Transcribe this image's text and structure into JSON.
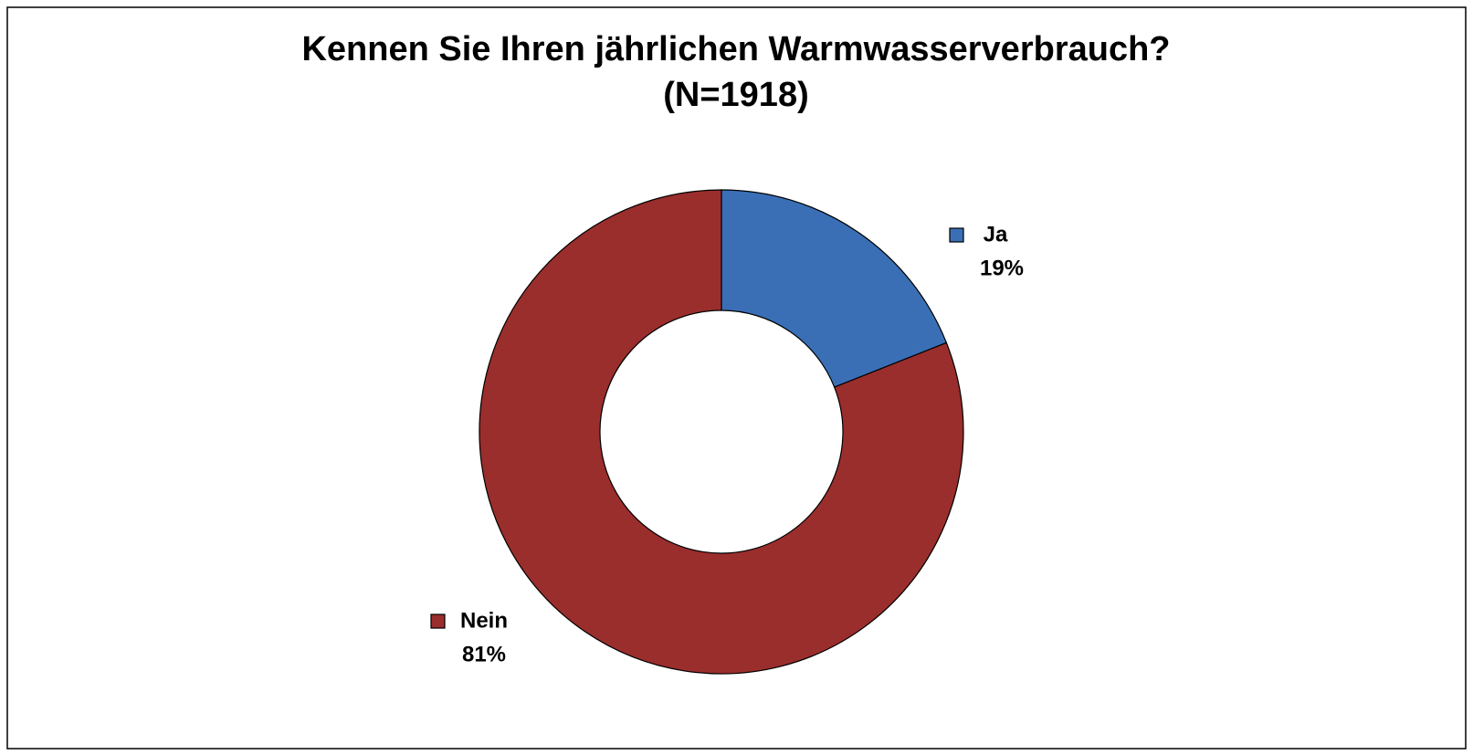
{
  "chart_data": {
    "type": "donut",
    "title": "Kennen Sie Ihren jährlichen Warmwasserverbrauch?",
    "subtitle": "(N=1918)",
    "categories": [
      "Ja",
      "Nein"
    ],
    "values": [
      19,
      81
    ],
    "value_labels": [
      "19%",
      "81%"
    ],
    "colors": [
      "#3a6fb6",
      "#9a2e2d"
    ]
  }
}
